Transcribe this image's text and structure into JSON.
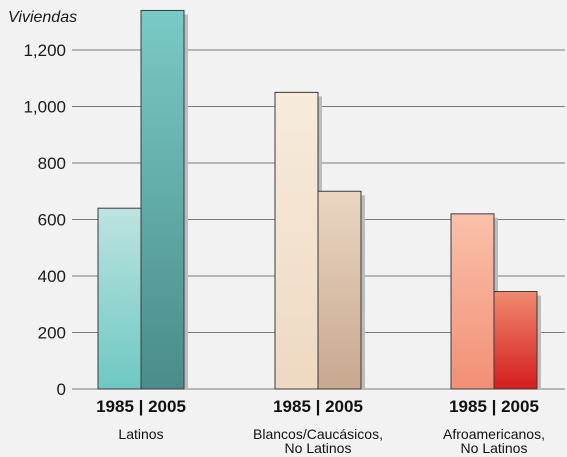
{
  "chart_data": {
    "type": "bar",
    "y_unit_label": "Viviendas",
    "ylim": [
      0,
      1350
    ],
    "yticks": [
      0,
      200,
      400,
      600,
      800,
      1000,
      1200
    ],
    "ytick_labels": [
      "0",
      "200",
      "400",
      "600",
      "800",
      "1,000",
      "1,200"
    ],
    "grid": true,
    "groups": [
      {
        "label_lines": [
          "Latinos"
        ],
        "year_label": "1985 | 2005",
        "bars": [
          {
            "year": "1985",
            "value": 640,
            "color_top": "#bde3e0",
            "color_bottom": "#6ec8c3"
          },
          {
            "year": "2005",
            "value": 1340,
            "color_top": "#79cac6",
            "color_bottom": "#4a8c8a"
          }
        ]
      },
      {
        "label_lines": [
          "Blancos/Caucásicos,",
          "No Latinos"
        ],
        "year_label": "1985 | 2005",
        "bars": [
          {
            "year": "1985",
            "value": 1050,
            "color_top": "#f7ebdc",
            "color_bottom": "#eed9c2"
          },
          {
            "year": "2005",
            "value": 700,
            "color_top": "#ead6c2",
            "color_bottom": "#c8a88f"
          }
        ]
      },
      {
        "label_lines": [
          "Afroamericanos,",
          "No Latinos"
        ],
        "year_label": "1985 | 2005",
        "bars": [
          {
            "year": "1985",
            "value": 620,
            "color_top": "#fac1aa",
            "color_bottom": "#f28f75"
          },
          {
            "year": "2005",
            "value": 345,
            "color_top": "#f08a6f",
            "color_bottom": "#d41d1d"
          }
        ]
      }
    ]
  }
}
